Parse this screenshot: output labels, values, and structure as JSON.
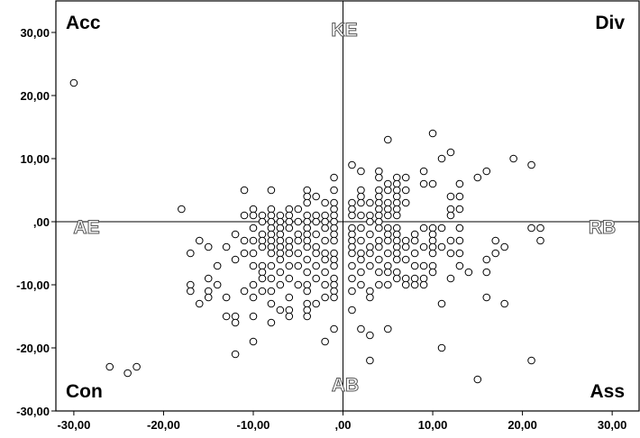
{
  "chart_data": {
    "type": "scatter",
    "title": "",
    "xlabel": "",
    "ylabel": "",
    "xlim": [
      -32,
      33
    ],
    "ylim": [
      -30,
      35
    ],
    "x_ticks": [
      -30,
      -20,
      -10,
      0,
      10,
      20,
      30
    ],
    "x_tick_labels": [
      "-30,00",
      "-20,00",
      "-10,00",
      ",00",
      "10,00",
      "20,00",
      "30,00"
    ],
    "y_ticks": [
      30,
      20,
      10,
      0,
      -10,
      -20,
      -30
    ],
    "y_tick_labels": [
      "30,00",
      "20,00",
      "10,00",
      ",00",
      "-10,00",
      "-20,00",
      "-30,00"
    ],
    "grid": false,
    "reference_lines": {
      "x": 0,
      "y": 0
    },
    "marker": "open-circle",
    "marker_color": "#000000",
    "corner_labels": {
      "top_left": "Acc",
      "top_right": "Div",
      "bottom_left": "Con",
      "bottom_right": "Ass"
    },
    "axis_end_labels": {
      "top": "KE",
      "bottom": "AB",
      "left": "AE",
      "right": "RB"
    },
    "points": [
      [
        -30,
        22
      ],
      [
        -26,
        -23
      ],
      [
        -24,
        -24
      ],
      [
        -23,
        -23
      ],
      [
        -18,
        2
      ],
      [
        -17,
        -5
      ],
      [
        -17,
        -10
      ],
      [
        -17,
        -11
      ],
      [
        -16,
        -3
      ],
      [
        -16,
        -13
      ],
      [
        -15,
        -4
      ],
      [
        -15,
        -9
      ],
      [
        -15,
        -11
      ],
      [
        -15,
        -12
      ],
      [
        -14,
        -7
      ],
      [
        -14,
        -10
      ],
      [
        -13,
        -4
      ],
      [
        -13,
        -12
      ],
      [
        -13,
        -15
      ],
      [
        -12,
        -2
      ],
      [
        -12,
        -6
      ],
      [
        -12,
        -15
      ],
      [
        -12,
        -16
      ],
      [
        -12,
        -21
      ],
      [
        -11,
        5
      ],
      [
        -11,
        1
      ],
      [
        -11,
        -3
      ],
      [
        -11,
        -5
      ],
      [
        -11,
        -11
      ],
      [
        -10,
        2
      ],
      [
        -10,
        1
      ],
      [
        -10,
        -1
      ],
      [
        -10,
        -3
      ],
      [
        -10,
        -5
      ],
      [
        -10,
        -7
      ],
      [
        -10,
        -10
      ],
      [
        -10,
        -12
      ],
      [
        -10,
        -15
      ],
      [
        -10,
        -19
      ],
      [
        -9,
        1
      ],
      [
        -9,
        0
      ],
      [
        -9,
        -2
      ],
      [
        -9,
        -3
      ],
      [
        -9,
        -4
      ],
      [
        -9,
        -7
      ],
      [
        -9,
        -8
      ],
      [
        -9,
        -9
      ],
      [
        -9,
        -11
      ],
      [
        -8,
        5
      ],
      [
        -8,
        2
      ],
      [
        -8,
        1
      ],
      [
        -8,
        0
      ],
      [
        -8,
        -1
      ],
      [
        -8,
        -2
      ],
      [
        -8,
        -3
      ],
      [
        -8,
        -4
      ],
      [
        -8,
        -5
      ],
      [
        -8,
        -7
      ],
      [
        -8,
        -9
      ],
      [
        -8,
        -11
      ],
      [
        -8,
        -13
      ],
      [
        -8,
        -16
      ],
      [
        -7,
        1
      ],
      [
        -7,
        0
      ],
      [
        -7,
        -1
      ],
      [
        -7,
        -2
      ],
      [
        -7,
        -3
      ],
      [
        -7,
        -4
      ],
      [
        -7,
        -5
      ],
      [
        -7,
        -6
      ],
      [
        -7,
        -8
      ],
      [
        -7,
        -10
      ],
      [
        -7,
        -14
      ],
      [
        -6,
        2
      ],
      [
        -6,
        1
      ],
      [
        -6,
        0
      ],
      [
        -6,
        -1
      ],
      [
        -6,
        -3
      ],
      [
        -6,
        -4
      ],
      [
        -6,
        -5
      ],
      [
        -6,
        -7
      ],
      [
        -6,
        -9
      ],
      [
        -6,
        -12
      ],
      [
        -6,
        -14
      ],
      [
        -6,
        -15
      ],
      [
        -5,
        2
      ],
      [
        -5,
        0
      ],
      [
        -5,
        -2
      ],
      [
        -5,
        -3
      ],
      [
        -5,
        -5
      ],
      [
        -5,
        -7
      ],
      [
        -5,
        -10
      ],
      [
        -4,
        5
      ],
      [
        -4,
        4
      ],
      [
        -4,
        3
      ],
      [
        -4,
        1
      ],
      [
        -4,
        0
      ],
      [
        -4,
        -1
      ],
      [
        -4,
        -2
      ],
      [
        -4,
        -3
      ],
      [
        -4,
        -4
      ],
      [
        -4,
        -6
      ],
      [
        -4,
        -8
      ],
      [
        -4,
        -10
      ],
      [
        -4,
        -11
      ],
      [
        -4,
        -13
      ],
      [
        -4,
        -14
      ],
      [
        -4,
        -15
      ],
      [
        -3,
        4
      ],
      [
        -3,
        1
      ],
      [
        -3,
        0
      ],
      [
        -3,
        -2
      ],
      [
        -3,
        -4
      ],
      [
        -3,
        -5
      ],
      [
        -3,
        -7
      ],
      [
        -3,
        -9
      ],
      [
        -3,
        -13
      ],
      [
        -2,
        3
      ],
      [
        -2,
        1
      ],
      [
        -2,
        0
      ],
      [
        -2,
        -1
      ],
      [
        -2,
        -3
      ],
      [
        -2,
        -5
      ],
      [
        -2,
        -6
      ],
      [
        -2,
        -8
      ],
      [
        -2,
        -10
      ],
      [
        -2,
        -12
      ],
      [
        -2,
        -19
      ],
      [
        -1,
        7
      ],
      [
        -1,
        5
      ],
      [
        -1,
        3
      ],
      [
        -1,
        2
      ],
      [
        -1,
        1
      ],
      [
        -1,
        0
      ],
      [
        -1,
        -1
      ],
      [
        -1,
        -2
      ],
      [
        -1,
        -3
      ],
      [
        -1,
        -5
      ],
      [
        -1,
        -6
      ],
      [
        -1,
        -7
      ],
      [
        -1,
        -9
      ],
      [
        -1,
        -10
      ],
      [
        -1,
        -11
      ],
      [
        -1,
        -12
      ],
      [
        -1,
        -17
      ],
      [
        1,
        9
      ],
      [
        1,
        3
      ],
      [
        1,
        2
      ],
      [
        1,
        1
      ],
      [
        1,
        -1
      ],
      [
        1,
        -2
      ],
      [
        1,
        -3
      ],
      [
        1,
        -4
      ],
      [
        1,
        -5
      ],
      [
        1,
        -7
      ],
      [
        1,
        -9
      ],
      [
        1,
        -11
      ],
      [
        1,
        -14
      ],
      [
        2,
        8
      ],
      [
        2,
        5
      ],
      [
        2,
        4
      ],
      [
        2,
        3
      ],
      [
        2,
        1
      ],
      [
        2,
        -1
      ],
      [
        2,
        -3
      ],
      [
        2,
        -5
      ],
      [
        2,
        -6
      ],
      [
        2,
        -8
      ],
      [
        2,
        -10
      ],
      [
        2,
        -17
      ],
      [
        3,
        3
      ],
      [
        3,
        1
      ],
      [
        3,
        0
      ],
      [
        3,
        -2
      ],
      [
        3,
        -4
      ],
      [
        3,
        -5
      ],
      [
        3,
        -7
      ],
      [
        3,
        -11
      ],
      [
        3,
        -12
      ],
      [
        3,
        -18
      ],
      [
        3,
        -22
      ],
      [
        4,
        8
      ],
      [
        4,
        7
      ],
      [
        4,
        5
      ],
      [
        4,
        4
      ],
      [
        4,
        3
      ],
      [
        4,
        2
      ],
      [
        4,
        1
      ],
      [
        4,
        0
      ],
      [
        4,
        -1
      ],
      [
        4,
        -3
      ],
      [
        4,
        -4
      ],
      [
        4,
        -6
      ],
      [
        4,
        -8
      ],
      [
        4,
        -10
      ],
      [
        5,
        13
      ],
      [
        5,
        6
      ],
      [
        5,
        5
      ],
      [
        5,
        3
      ],
      [
        5,
        2
      ],
      [
        5,
        1
      ],
      [
        5,
        -1
      ],
      [
        5,
        -2
      ],
      [
        5,
        -3
      ],
      [
        5,
        -5
      ],
      [
        5,
        -7
      ],
      [
        5,
        -8
      ],
      [
        5,
        -10
      ],
      [
        5,
        -17
      ],
      [
        6,
        7
      ],
      [
        6,
        6
      ],
      [
        6,
        5
      ],
      [
        6,
        4
      ],
      [
        6,
        3
      ],
      [
        6,
        2
      ],
      [
        6,
        1
      ],
      [
        6,
        -1
      ],
      [
        6,
        -2
      ],
      [
        6,
        -3
      ],
      [
        6,
        -4
      ],
      [
        6,
        -5
      ],
      [
        6,
        -6
      ],
      [
        6,
        -8
      ],
      [
        6,
        -9
      ],
      [
        7,
        7
      ],
      [
        7,
        5
      ],
      [
        7,
        3
      ],
      [
        7,
        -3
      ],
      [
        7,
        -4
      ],
      [
        7,
        -6
      ],
      [
        7,
        -9
      ],
      [
        7,
        -10
      ],
      [
        8,
        -2
      ],
      [
        8,
        -3
      ],
      [
        8,
        -5
      ],
      [
        8,
        -7
      ],
      [
        8,
        -9
      ],
      [
        8,
        -10
      ],
      [
        9,
        8
      ],
      [
        9,
        6
      ],
      [
        9,
        -1
      ],
      [
        9,
        -4
      ],
      [
        9,
        -7
      ],
      [
        9,
        -9
      ],
      [
        9,
        -10
      ],
      [
        10,
        14
      ],
      [
        10,
        6
      ],
      [
        10,
        -1
      ],
      [
        10,
        -2
      ],
      [
        10,
        -3
      ],
      [
        10,
        -4
      ],
      [
        10,
        -5
      ],
      [
        10,
        -7
      ],
      [
        10,
        -8
      ],
      [
        11,
        10
      ],
      [
        11,
        -1
      ],
      [
        11,
        -4
      ],
      [
        11,
        -13
      ],
      [
        11,
        -20
      ],
      [
        12,
        11
      ],
      [
        12,
        4
      ],
      [
        12,
        2
      ],
      [
        12,
        1
      ],
      [
        12,
        -3
      ],
      [
        12,
        -5
      ],
      [
        12,
        -9
      ],
      [
        13,
        6
      ],
      [
        13,
        4
      ],
      [
        13,
        2
      ],
      [
        13,
        -1
      ],
      [
        13,
        -3
      ],
      [
        13,
        -5
      ],
      [
        13,
        -7
      ],
      [
        14,
        -8
      ],
      [
        15,
        7
      ],
      [
        15,
        -25
      ],
      [
        16,
        8
      ],
      [
        16,
        -6
      ],
      [
        16,
        -8
      ],
      [
        16,
        -12
      ],
      [
        17,
        -3
      ],
      [
        17,
        -5
      ],
      [
        18,
        -4
      ],
      [
        18,
        -13
      ],
      [
        19,
        10
      ],
      [
        21,
        9
      ],
      [
        21,
        -1
      ],
      [
        21,
        -22
      ],
      [
        22,
        -1
      ],
      [
        22,
        -3
      ]
    ]
  }
}
